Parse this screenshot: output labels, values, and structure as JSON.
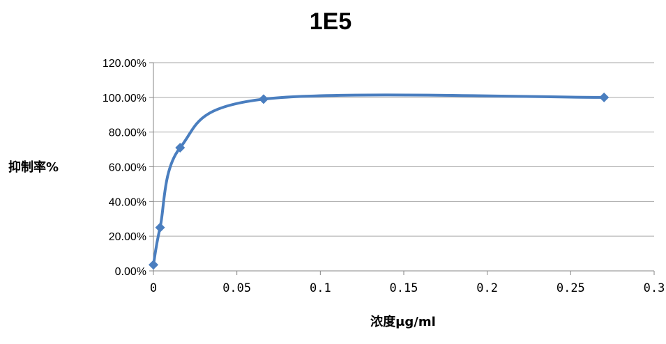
{
  "chart_data": {
    "type": "scatter",
    "title": "1E5",
    "xlabel": "浓度μg/ml",
    "ylabel": "抑制率%",
    "xlim": [
      0,
      0.3
    ],
    "ylim": [
      0,
      1.2
    ],
    "x_ticks": [
      "0",
      "0.05",
      "0.1",
      "0.15",
      "0.2",
      "0.25",
      "0.3"
    ],
    "y_ticks": [
      "0.00%",
      "20.00%",
      "40.00%",
      "60.00%",
      "80.00%",
      "100.00%",
      "120.00%"
    ],
    "grid": true,
    "smooth_line": true,
    "marker": "diamond",
    "series": [
      {
        "x": [
          0.0,
          0.004,
          0.016,
          0.066,
          0.27
        ],
        "y": [
          0.035,
          0.25,
          0.71,
          0.99,
          1.0
        ],
        "color": "#4a7ebf"
      }
    ]
  }
}
